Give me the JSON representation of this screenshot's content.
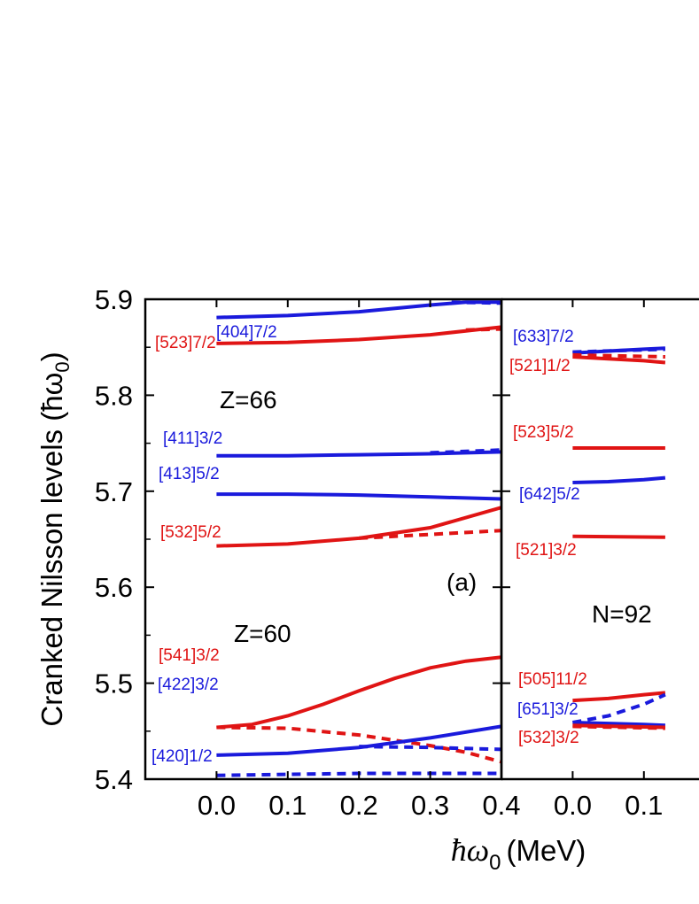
{
  "chart_data": {
    "type": "line",
    "ylabel": "Cranked Nilsson levels (ħω",
    "ylabel_sub": "0",
    "ylabel_close": ")",
    "xlabel_sym": "ħω",
    "xlabel_sub": "0",
    "xlabel_unit": "(MeV)",
    "ylim": [
      5.4,
      5.9
    ],
    "yticks": [
      "5.4",
      "5.5",
      "5.6",
      "5.7",
      "5.8",
      "5.9"
    ],
    "colors": {
      "blue": "#1a1adc",
      "red": "#e01414"
    },
    "panels": [
      {
        "id": "a",
        "xlim": [
          -0.1,
          0.4
        ],
        "xticks": [
          "0.0",
          "0.1",
          "0.2",
          "0.3",
          "0.4"
        ],
        "panel_label": "(a)",
        "annotations": [
          "Z=66",
          "Z=60"
        ],
        "levels": [
          {
            "label": "[404]7/2",
            "color": "blue",
            "solid": [
              [
                0,
                5.881
              ],
              [
                0.1,
                5.883
              ],
              [
                0.2,
                5.887
              ],
              [
                0.3,
                5.894
              ],
              [
                0.35,
                5.897
              ],
              [
                0.4,
                5.897
              ]
            ],
            "dashed": [
              [
                0.33,
                5.897
              ],
              [
                0.4,
                5.896
              ]
            ]
          },
          {
            "label": "[523]7/2",
            "color": "red",
            "solid": [
              [
                0,
                5.854
              ],
              [
                0.1,
                5.855
              ],
              [
                0.2,
                5.858
              ],
              [
                0.3,
                5.863
              ],
              [
                0.4,
                5.871
              ]
            ],
            "dashed": [
              [
                0.35,
                5.868
              ],
              [
                0.4,
                5.869
              ]
            ]
          },
          {
            "label": "[411]3/2",
            "color": "blue",
            "solid": [
              [
                0,
                5.737
              ],
              [
                0.1,
                5.737
              ],
              [
                0.2,
                5.738
              ],
              [
                0.3,
                5.739
              ],
              [
                0.4,
                5.741
              ]
            ],
            "dashed": [
              [
                0.3,
                5.74
              ],
              [
                0.4,
                5.743
              ]
            ]
          },
          {
            "label": "[413]5/2",
            "color": "blue",
            "solid": [
              [
                0,
                5.697
              ],
              [
                0.1,
                5.697
              ],
              [
                0.2,
                5.696
              ],
              [
                0.3,
                5.694
              ],
              [
                0.4,
                5.692
              ]
            ],
            "dashed": []
          },
          {
            "label": "[532]5/2",
            "color": "red",
            "solid": [
              [
                0,
                5.643
              ],
              [
                0.1,
                5.645
              ],
              [
                0.2,
                5.651
              ],
              [
                0.3,
                5.662
              ],
              [
                0.4,
                5.683
              ]
            ],
            "dashed": [
              [
                0.2,
                5.651
              ],
              [
                0.3,
                5.655
              ],
              [
                0.4,
                5.659
              ]
            ]
          },
          {
            "label": "[541]3/2",
            "color": "red",
            "solid": [
              [
                0,
                5.454
              ],
              [
                0.05,
                5.457
              ],
              [
                0.1,
                5.466
              ],
              [
                0.15,
                5.478
              ],
              [
                0.2,
                5.492
              ],
              [
                0.25,
                5.505
              ],
              [
                0.3,
                5.516
              ],
              [
                0.35,
                5.523
              ],
              [
                0.4,
                5.527
              ]
            ],
            "dashed": [
              [
                0,
                5.454
              ],
              [
                0.1,
                5.453
              ],
              [
                0.2,
                5.446
              ],
              [
                0.3,
                5.435
              ],
              [
                0.35,
                5.428
              ],
              [
                0.4,
                5.418
              ]
            ]
          },
          {
            "label": "[422]3/2",
            "color": "blue",
            "solid": [
              [
                0,
                5.425
              ],
              [
                0.1,
                5.427
              ],
              [
                0.2,
                5.433
              ],
              [
                0.3,
                5.443
              ],
              [
                0.4,
                5.455
              ]
            ],
            "dashed": [
              [
                0.2,
                5.434
              ],
              [
                0.3,
                5.433
              ],
              [
                0.4,
                5.431
              ]
            ]
          },
          {
            "label": "[420]1/2",
            "color": "blue",
            "solid": [],
            "dashed": [
              [
                0,
                5.404
              ],
              [
                0.1,
                5.405
              ],
              [
                0.2,
                5.406
              ],
              [
                0.3,
                5.406
              ],
              [
                0.4,
                5.406
              ]
            ]
          }
        ]
      },
      {
        "id": "b",
        "xlim": [
          -0.1,
          0.4
        ],
        "xticks": [
          "0.0",
          "0.1",
          "0"
        ],
        "annotations": [
          "N=92"
        ],
        "levels": [
          {
            "label": "[633]7/2",
            "color": "blue",
            "solid": [
              [
                0,
                5.844
              ],
              [
                0.05,
                5.846
              ],
              [
                0.1,
                5.848
              ],
              [
                0.13,
                5.849
              ]
            ],
            "dashed": [
              [
                0,
                5.845
              ],
              [
                0.13,
                5.848
              ]
            ]
          },
          {
            "label": "[521]1/2",
            "color": "red",
            "solid": [
              [
                0,
                5.84
              ],
              [
                0.05,
                5.838
              ],
              [
                0.1,
                5.836
              ],
              [
                0.13,
                5.834
              ]
            ],
            "dashed": [
              [
                0,
                5.842
              ],
              [
                0.13,
                5.84
              ]
            ]
          },
          {
            "label": "[523]5/2",
            "color": "red",
            "solid": [
              [
                0,
                5.745
              ],
              [
                0.13,
                5.745
              ]
            ],
            "dashed": []
          },
          {
            "label": "[642]5/2",
            "color": "blue",
            "solid": [
              [
                0,
                5.709
              ],
              [
                0.05,
                5.71
              ],
              [
                0.1,
                5.712
              ],
              [
                0.13,
                5.714
              ]
            ],
            "dashed": []
          },
          {
            "label": "[521]3/2",
            "color": "red",
            "solid": [
              [
                0,
                5.653
              ],
              [
                0.13,
                5.652
              ]
            ],
            "dashed": []
          },
          {
            "label": "[505]11/2",
            "color": "red",
            "solid": [
              [
                0,
                5.482
              ],
              [
                0.05,
                5.484
              ],
              [
                0.1,
                5.488
              ],
              [
                0.13,
                5.49
              ]
            ],
            "dashed": []
          },
          {
            "label": "[651]3/2",
            "color": "blue",
            "solid": [
              [
                0,
                5.459
              ],
              [
                0.05,
                5.458
              ],
              [
                0.1,
                5.457
              ],
              [
                0.13,
                5.456
              ]
            ],
            "dashed": [
              [
                0,
                5.459
              ],
              [
                0.05,
                5.466
              ],
              [
                0.1,
                5.478
              ],
              [
                0.13,
                5.488
              ]
            ]
          },
          {
            "label": "[532]3/2",
            "color": "red",
            "solid": [
              [
                0,
                5.456
              ],
              [
                0.13,
                5.454
              ]
            ],
            "dashed": [
              [
                0,
                5.455
              ],
              [
                0.13,
                5.453
              ]
            ]
          }
        ]
      }
    ]
  }
}
